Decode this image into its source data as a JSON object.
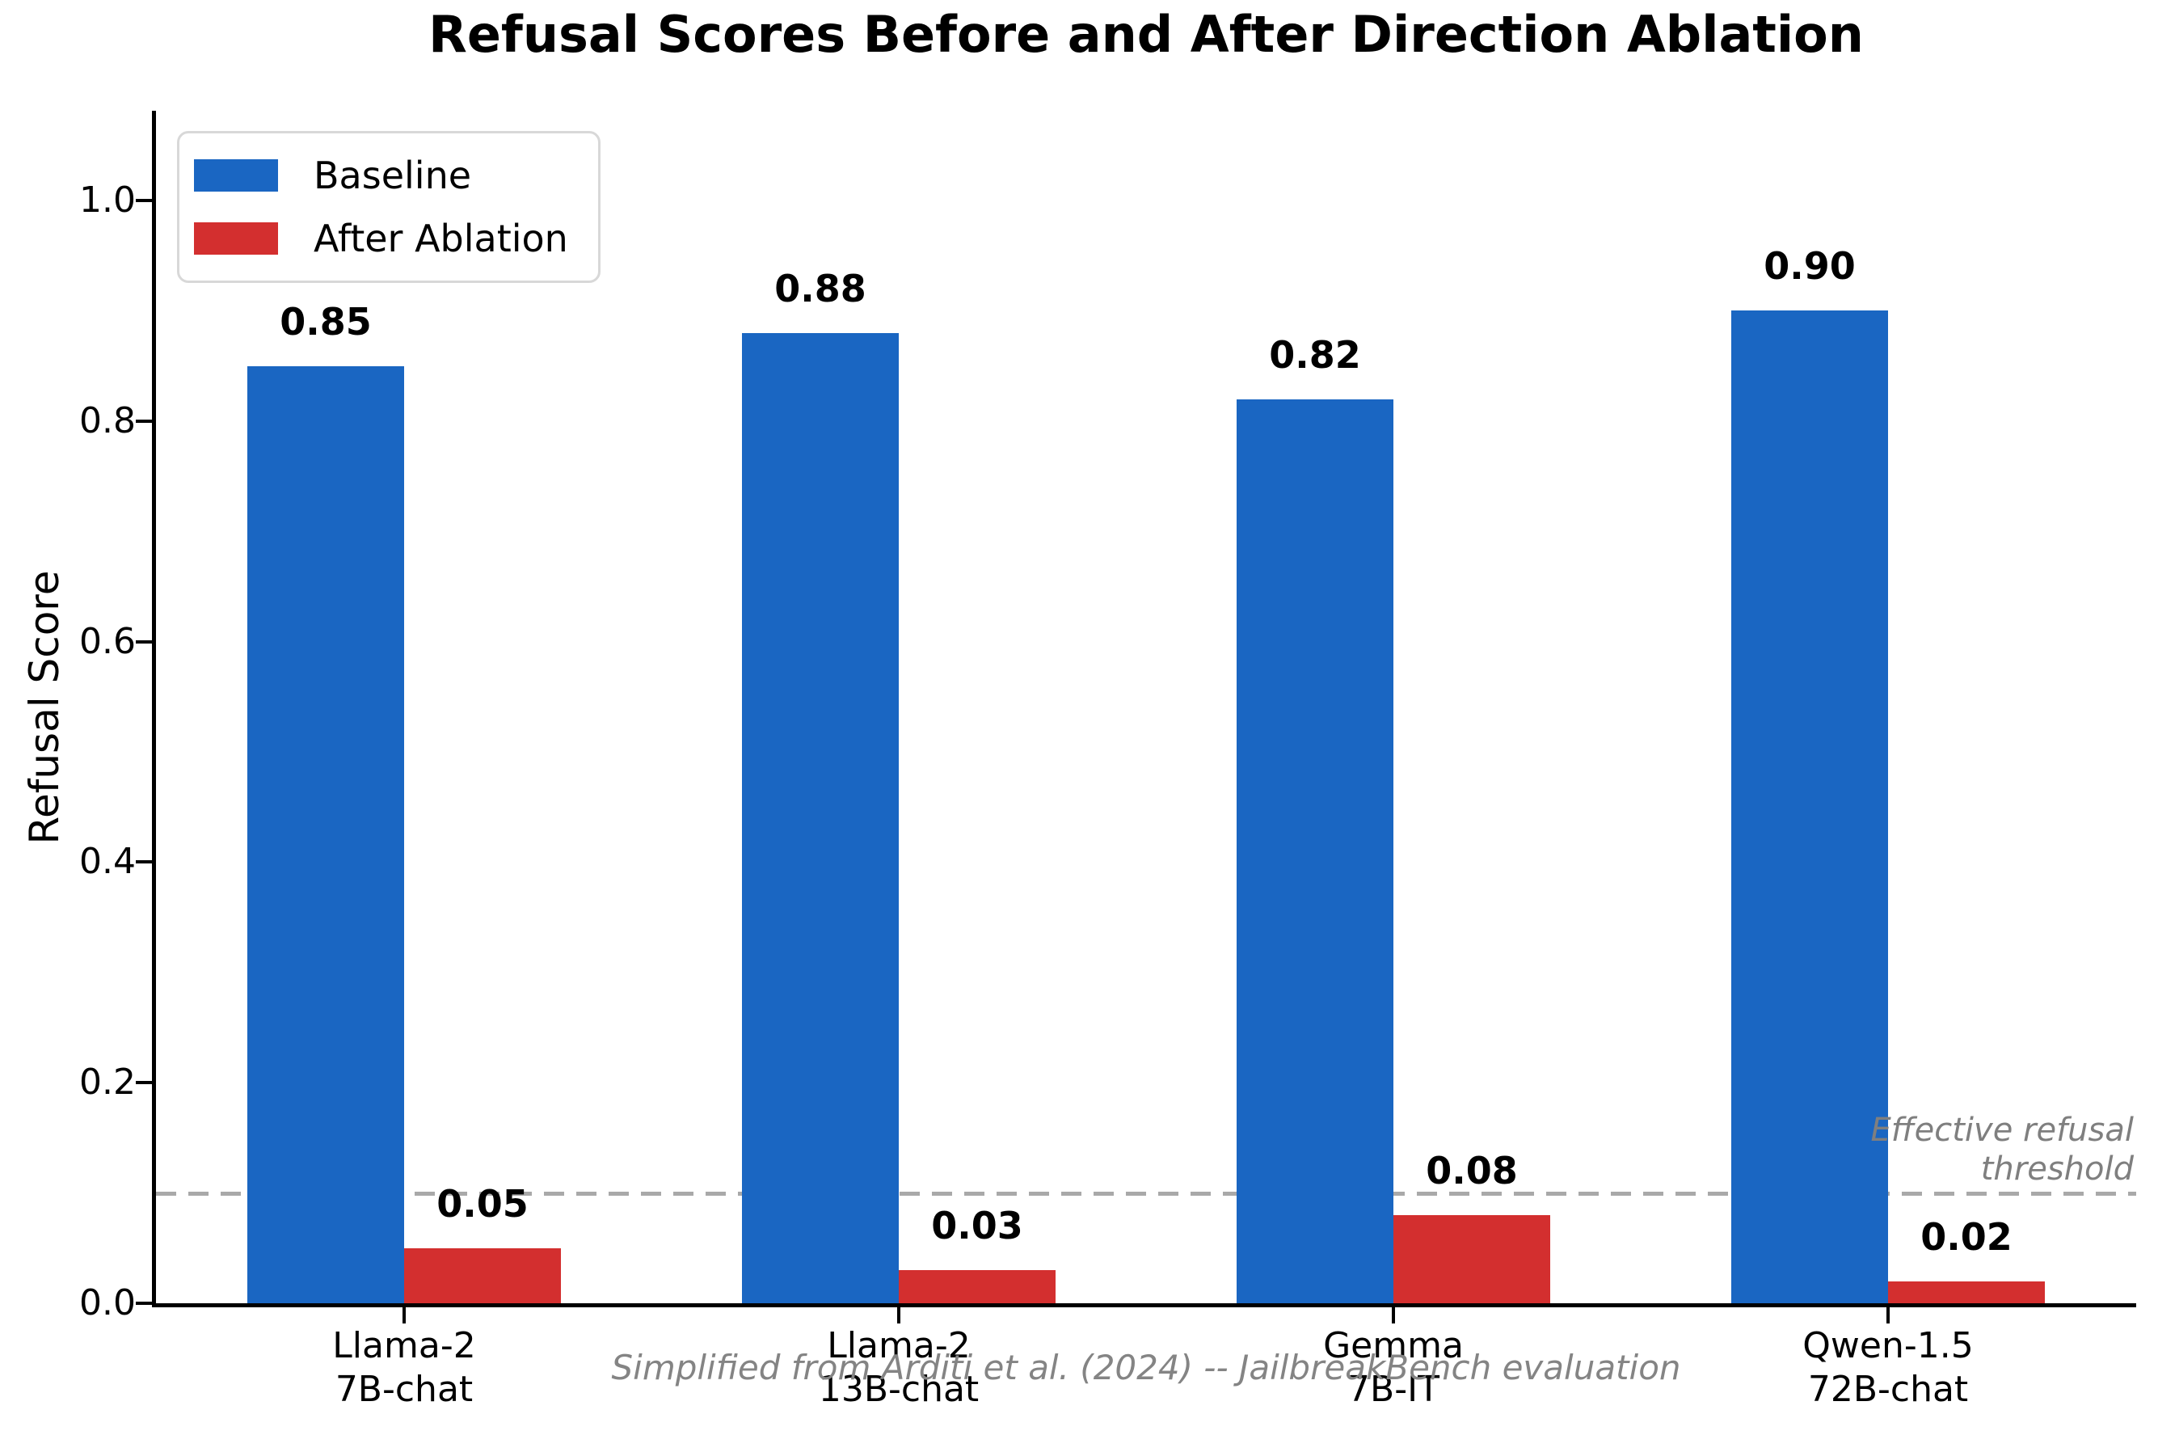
{
  "title": "Refusal Scores Before and After Direction Ablation",
  "chart_data": {
    "type": "bar",
    "categories": [
      {
        "line1": "Llama-2",
        "line2": "7B-chat"
      },
      {
        "line1": "Llama-2",
        "line2": "13B-chat"
      },
      {
        "line1": "Gemma",
        "line2": "7B-IT"
      },
      {
        "line1": "Qwen-1.5",
        "line2": "72B-chat"
      }
    ],
    "series": [
      {
        "name": "Baseline",
        "color": "#1a66c2",
        "values": [
          0.85,
          0.88,
          0.82,
          0.9
        ],
        "labels": [
          "0.85",
          "0.88",
          "0.82",
          "0.90"
        ]
      },
      {
        "name": "After Ablation",
        "color": "#d32f2f",
        "values": [
          0.05,
          0.03,
          0.08,
          0.02
        ],
        "labels": [
          "0.05",
          "0.03",
          "0.08",
          "0.02"
        ]
      }
    ],
    "ylabel": "Refusal Score",
    "xlabel": "",
    "ylim": [
      0,
      1.08
    ],
    "yticks": [
      0.0,
      0.2,
      0.4,
      0.6,
      0.8,
      1.0
    ],
    "ytick_labels": [
      "0.0",
      "0.2",
      "0.4",
      "0.6",
      "0.8",
      "1.0"
    ],
    "grid": false,
    "legend_position": "upper left",
    "threshold": {
      "value": 0.1,
      "label_line1": "Effective refusal",
      "label_line2": "threshold",
      "line_color": "#a9a9a9"
    },
    "caption": "Simplified from Arditi et al. (2024) -- JailbreakBench evaluation"
  },
  "colors": {
    "baseline_bar": "#1a66c2",
    "ablation_bar": "#d32f2f",
    "axis": "#000000",
    "threshold_line": "#a9a9a9",
    "threshold_text": "#7f7f7f",
    "caption_text": "#848484"
  }
}
